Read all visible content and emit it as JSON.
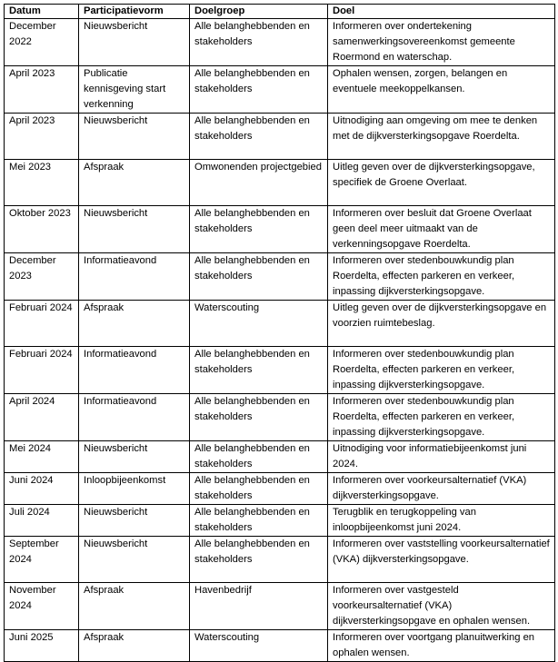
{
  "table": {
    "headers": [
      "Datum",
      "Participatievorm",
      "Doelgroep",
      "Doel"
    ],
    "rows": [
      [
        "December 2022",
        "Nieuwsbericht",
        "Alle belanghebbenden en stakeholders",
        "Informeren over ondertekening samenwerkingsovereenkomst gemeente Roermond en waterschap."
      ],
      [
        "April 2023",
        "Publicatie kennisgeving start verkenning",
        "Alle belanghebbenden en stakeholders",
        "Ophalen wensen, zorgen, belangen en eventuele meekoppelkansen."
      ],
      [
        "April 2023",
        "Nieuwsbericht",
        "Alle belanghebbenden en stakeholders",
        "Uitnodiging aan omgeving om mee te denken met de dijkversterkingsopgave Roerdelta."
      ],
      [
        "Mei 2023",
        "Afspraak",
        "Omwonenden projectgebied",
        "Uitleg geven over de dijkversterkingsopgave, specifiek de Groene Overlaat."
      ],
      [
        "Oktober 2023",
        "Nieuwsbericht",
        "Alle belanghebbenden en stakeholders",
        "Informeren over besluit dat Groene Overlaat geen deel meer uitmaakt van de verkenningsopgave Roerdelta."
      ],
      [
        "December 2023",
        "Informatieavond",
        "Alle belanghebbenden en stakeholders",
        "Informeren over stedenbouwkundig plan Roerdelta, effecten parkeren en verkeer, inpassing dijkversterkingsopgave."
      ],
      [
        "Februari 2024",
        "Afspraak",
        "Waterscouting",
        "Uitleg geven over de dijkversterkingsopgave en voorzien ruimtebeslag."
      ],
      [
        "Februari 2024",
        "Informatieavond",
        "Alle belanghebbenden en stakeholders",
        "Informeren over stedenbouwkundig plan Roerdelta, effecten parkeren en verkeer, inpassing dijkversterkingsopgave."
      ],
      [
        "April 2024",
        "Informatieavond",
        "Alle belanghebbenden en stakeholders",
        "Informeren over stedenbouwkundig plan Roerdelta, effecten parkeren en verkeer, inpassing dijkversterkingsopgave."
      ],
      [
        "Mei 2024",
        "Nieuwsbericht",
        "Alle belanghebbenden en stakeholders",
        "Uitnodiging voor informatiebijeenkomst juni 2024."
      ],
      [
        "Juni 2024",
        "Inloopbijeenkomst",
        "Alle belanghebbenden en stakeholders",
        "Informeren over voorkeursalternatief (VKA) dijkversterkingsopgave."
      ],
      [
        "Juli 2024",
        "Nieuwsbericht",
        "Alle belanghebbenden en stakeholders",
        "Terugblik en terugkoppeling van inloopbijeenkomst juni 2024."
      ],
      [
        "September 2024",
        "Nieuwsbericht",
        "Alle belanghebbenden en stakeholders",
        "Informeren over vaststelling voorkeursalternatief (VKA) dijkversterkingsopgave."
      ],
      [
        "November 2024",
        "Afspraak",
        "Havenbedrijf",
        "Informeren over vastgesteld voorkeursalternatief (VKA) dijkversterkingsopgave en ophalen wensen."
      ],
      [
        "Juni 2025",
        "Afspraak",
        "Waterscouting",
        "Informeren over voortgang planuitwerking en ophalen wensen."
      ]
    ]
  }
}
